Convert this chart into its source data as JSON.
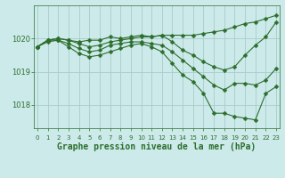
{
  "title": "Graphe pression niveau de la mer (hPa)",
  "background_color": "#cceaea",
  "grid_color": "#aacccc",
  "line_color": "#2d6e2d",
  "hours": [
    0,
    1,
    2,
    3,
    4,
    5,
    6,
    7,
    8,
    9,
    10,
    11,
    12,
    13,
    14,
    15,
    16,
    17,
    18,
    19,
    20,
    21,
    22,
    23
  ],
  "line1": [
    1019.75,
    1019.95,
    1020.0,
    1019.95,
    1019.9,
    1019.95,
    1019.95,
    1020.05,
    1020.0,
    1020.05,
    1020.1,
    1020.05,
    1020.1,
    1020.1,
    1020.1,
    1020.1,
    1020.15,
    1020.2,
    1020.25,
    1020.35,
    1020.45,
    1020.5,
    1020.6,
    1020.7
  ],
  "line2": [
    1019.75,
    1019.95,
    1020.0,
    1019.95,
    1019.85,
    1019.75,
    1019.8,
    1019.9,
    1019.95,
    1020.0,
    1020.05,
    1020.05,
    1020.1,
    1019.9,
    1019.65,
    1019.5,
    1019.3,
    1019.15,
    1019.05,
    1019.15,
    1019.5,
    1019.8,
    1020.05,
    1020.5
  ],
  "line3": [
    1019.75,
    1019.95,
    1019.95,
    1019.85,
    1019.7,
    1019.6,
    1019.65,
    1019.8,
    1019.85,
    1019.9,
    1019.9,
    1019.85,
    1019.8,
    1019.6,
    1019.35,
    1019.1,
    1018.85,
    1018.6,
    1018.45,
    1018.65,
    1018.65,
    1018.6,
    1018.75,
    1019.1
  ],
  "line4": [
    1019.75,
    1019.9,
    1019.95,
    1019.75,
    1019.55,
    1019.45,
    1019.5,
    1019.6,
    1019.7,
    1019.8,
    1019.85,
    1019.75,
    1019.6,
    1019.25,
    1018.9,
    1018.7,
    1018.35,
    1017.75,
    1017.75,
    1017.65,
    1017.6,
    1017.55,
    1018.35,
    1018.55
  ],
  "ylim_min": 1017.3,
  "ylim_max": 1021.0,
  "yticks": [
    1018,
    1019,
    1020
  ],
  "marker_size": 2.5,
  "line_width": 0.8
}
